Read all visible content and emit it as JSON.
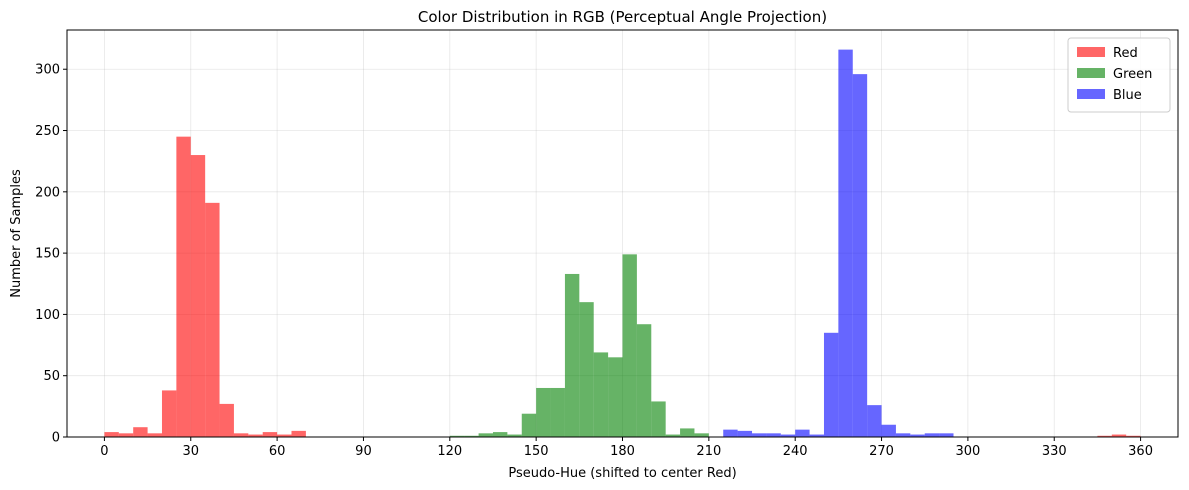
{
  "chart_data": {
    "type": "bar",
    "title": "Color Distribution in RGB (Perceptual Angle Projection)",
    "xlabel": "Pseudo-Hue (shifted to center Red)",
    "ylabel": "Number of Samples",
    "xlim": [
      -13,
      373
    ],
    "ylim": [
      0,
      332
    ],
    "xticks": [
      0,
      30,
      60,
      90,
      120,
      150,
      180,
      210,
      240,
      270,
      300,
      330,
      360
    ],
    "yticks": [
      0,
      50,
      100,
      150,
      200,
      250,
      300
    ],
    "grid": true,
    "legend_position": "top-right",
    "bin_width": 5,
    "series": [
      {
        "name": "Red",
        "color": "#ff0000",
        "opacity": 0.6,
        "bins": [
          {
            "x": 0,
            "y": 4
          },
          {
            "x": 5,
            "y": 3
          },
          {
            "x": 10,
            "y": 8
          },
          {
            "x": 15,
            "y": 3
          },
          {
            "x": 20,
            "y": 38
          },
          {
            "x": 25,
            "y": 245
          },
          {
            "x": 30,
            "y": 230
          },
          {
            "x": 35,
            "y": 191
          },
          {
            "x": 40,
            "y": 27
          },
          {
            "x": 45,
            "y": 3
          },
          {
            "x": 50,
            "y": 2
          },
          {
            "x": 55,
            "y": 4
          },
          {
            "x": 60,
            "y": 2
          },
          {
            "x": 65,
            "y": 5
          },
          {
            "x": 345,
            "y": 1
          },
          {
            "x": 350,
            "y": 2
          },
          {
            "x": 355,
            "y": 1
          }
        ]
      },
      {
        "name": "Green",
        "color": "#008000",
        "opacity": 0.6,
        "bins": [
          {
            "x": 120,
            "y": 1
          },
          {
            "x": 125,
            "y": 1
          },
          {
            "x": 130,
            "y": 3
          },
          {
            "x": 135,
            "y": 4
          },
          {
            "x": 140,
            "y": 2
          },
          {
            "x": 145,
            "y": 19
          },
          {
            "x": 150,
            "y": 40
          },
          {
            "x": 155,
            "y": 40
          },
          {
            "x": 160,
            "y": 133
          },
          {
            "x": 165,
            "y": 110
          },
          {
            "x": 170,
            "y": 69
          },
          {
            "x": 175,
            "y": 65
          },
          {
            "x": 180,
            "y": 149
          },
          {
            "x": 185,
            "y": 92
          },
          {
            "x": 190,
            "y": 29
          },
          {
            "x": 195,
            "y": 2
          },
          {
            "x": 200,
            "y": 7
          },
          {
            "x": 205,
            "y": 3
          }
        ]
      },
      {
        "name": "Blue",
        "color": "#0000ff",
        "opacity": 0.6,
        "bins": [
          {
            "x": 215,
            "y": 6
          },
          {
            "x": 220,
            "y": 5
          },
          {
            "x": 225,
            "y": 3
          },
          {
            "x": 230,
            "y": 3
          },
          {
            "x": 235,
            "y": 2
          },
          {
            "x": 240,
            "y": 6
          },
          {
            "x": 245,
            "y": 2
          },
          {
            "x": 250,
            "y": 85
          },
          {
            "x": 255,
            "y": 316
          },
          {
            "x": 260,
            "y": 296
          },
          {
            "x": 265,
            "y": 26
          },
          {
            "x": 270,
            "y": 10
          },
          {
            "x": 275,
            "y": 3
          },
          {
            "x": 280,
            "y": 2
          },
          {
            "x": 285,
            "y": 3
          },
          {
            "x": 290,
            "y": 3
          }
        ]
      }
    ]
  }
}
